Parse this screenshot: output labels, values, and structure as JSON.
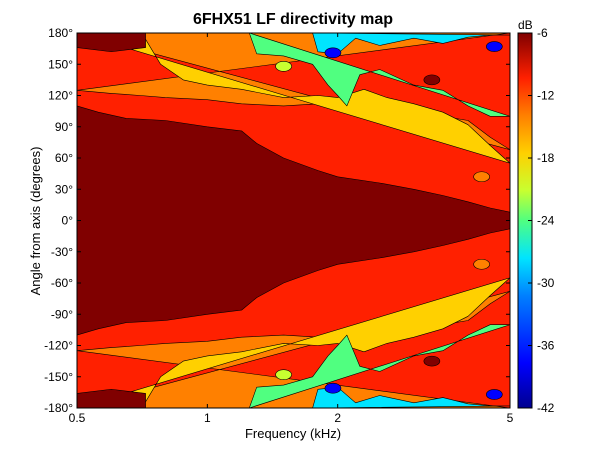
{
  "chart_data": {
    "type": "heatmap",
    "title": "6FHX51 LF directivity map",
    "xlabel": "Frequency (kHz)",
    "ylabel": "Angle from axis (degrees)",
    "xscale": "log",
    "xlim": [
      0.5,
      5
    ],
    "ylim": [
      -180,
      180
    ],
    "x_ticks": [
      {
        "value": 0.5,
        "label": "0.5"
      },
      {
        "value": 1,
        "label": "1"
      },
      {
        "value": 2,
        "label": "2"
      },
      {
        "value": 5,
        "label": "5"
      }
    ],
    "y_ticks": [
      {
        "value": 180,
        "label": "180°"
      },
      {
        "value": 150,
        "label": "150°"
      },
      {
        "value": 120,
        "label": "120°"
      },
      {
        "value": 90,
        "label": "90°"
      },
      {
        "value": 60,
        "label": "60°"
      },
      {
        "value": 30,
        "label": "30°"
      },
      {
        "value": 0,
        "label": "0°"
      },
      {
        "value": -30,
        "label": "-30°"
      },
      {
        "value": -60,
        "label": "-60°"
      },
      {
        "value": -90,
        "label": "-90°"
      },
      {
        "value": -120,
        "label": "-120°"
      },
      {
        "value": -150,
        "label": "-150°"
      },
      {
        "value": -180,
        "label": "-180°"
      }
    ],
    "colorbar": {
      "unit": "dB",
      "range": [
        -42,
        -6
      ],
      "ticks": [
        {
          "value": -6,
          "label": "-6"
        },
        {
          "value": -12,
          "label": "-12"
        },
        {
          "value": -18,
          "label": "-18"
        },
        {
          "value": -24,
          "label": "-24"
        },
        {
          "value": -30,
          "label": "-30"
        },
        {
          "value": -36,
          "label": "-36"
        },
        {
          "value": -42,
          "label": "-42"
        }
      ],
      "colors": [
        "#00008f",
        "#0000ff",
        "#0080ff",
        "#00e4ff",
        "#50ff80",
        "#c8ff30",
        "#ffd000",
        "#ff8000",
        "#ff2000",
        "#800000"
      ]
    },
    "levels": [
      {
        "name": "dark-red",
        "value": -6,
        "color": "#800000"
      },
      {
        "name": "red",
        "value": -9,
        "color": "#ff2000"
      },
      {
        "name": "orange",
        "value": -12,
        "color": "#ff8000"
      },
      {
        "name": "yellow",
        "value": -15,
        "color": "#ffd000"
      },
      {
        "name": "yellow-green",
        "value": -18,
        "color": "#c8ff30"
      },
      {
        "name": "green",
        "value": -21,
        "color": "#50ff80"
      },
      {
        "name": "cyan",
        "value": -24,
        "color": "#00e4ff"
      },
      {
        "name": "light-blue",
        "value": -27,
        "color": "#0080ff"
      },
      {
        "name": "blue",
        "value": -30,
        "color": "#0000ff"
      }
    ],
    "contours_upper": {
      "orange": [
        [
          0.5,
          125
        ],
        [
          0.6,
          122
        ],
        [
          0.7,
          120
        ],
        [
          0.8,
          118
        ],
        [
          1.0,
          116
        ],
        [
          1.2,
          112
        ],
        [
          1.5,
          110
        ],
        [
          1.8,
          112
        ],
        [
          2.0,
          110
        ],
        [
          2.2,
          112
        ],
        [
          2.6,
          108
        ],
        [
          3.0,
          104
        ],
        [
          3.5,
          100
        ],
        [
          4.0,
          96
        ],
        [
          4.5,
          80
        ],
        [
          5,
          68
        ]
      ],
      "yellow": [
        [
          0.5,
          180
        ],
        [
          0.72,
          174
        ],
        [
          0.78,
          150
        ],
        [
          0.88,
          135
        ],
        [
          1.0,
          130
        ],
        [
          1.2,
          126
        ],
        [
          1.5,
          118
        ],
        [
          1.8,
          120
        ],
        [
          2.0,
          118
        ],
        [
          2.3,
          126
        ],
        [
          2.6,
          118
        ],
        [
          3.0,
          112
        ],
        [
          3.5,
          104
        ],
        [
          4.0,
          92
        ],
        [
          4.5,
          72
        ],
        [
          5,
          55
        ]
      ],
      "green": [
        [
          1.25,
          180
        ],
        [
          1.3,
          160
        ],
        [
          1.5,
          158
        ],
        [
          1.75,
          150
        ],
        [
          1.9,
          130
        ],
        [
          2.0,
          120
        ],
        [
          2.1,
          110
        ],
        [
          2.25,
          140
        ],
        [
          2.5,
          145
        ],
        [
          3.0,
          130
        ],
        [
          3.5,
          125
        ],
        [
          4.0,
          110
        ],
        [
          4.5,
          100
        ],
        [
          5,
          100
        ]
      ],
      "cyan": [
        [
          1.75,
          180
        ],
        [
          1.8,
          162
        ],
        [
          2.0,
          160
        ],
        [
          2.2,
          175
        ],
        [
          2.5,
          168
        ],
        [
          3.0,
          175
        ],
        [
          3.5,
          170
        ],
        [
          4.0,
          176
        ],
        [
          4.5,
          178
        ],
        [
          5,
          178
        ]
      ]
    },
    "dark_red_core": [
      [
        0.5,
        110
      ],
      [
        0.56,
        104
      ],
      [
        0.65,
        98
      ],
      [
        0.8,
        96
      ],
      [
        1.0,
        90
      ],
      [
        1.2,
        86
      ],
      [
        1.3,
        74
      ],
      [
        1.5,
        60
      ],
      [
        1.8,
        48
      ],
      [
        2.0,
        42
      ],
      [
        2.5,
        36
      ],
      [
        3.0,
        30
      ],
      [
        3.5,
        24
      ],
      [
        4.0,
        18
      ],
      [
        4.5,
        12
      ],
      [
        5,
        8
      ]
    ],
    "spots_upper": [
      {
        "x": 1.95,
        "y": 161,
        "color": "#0000ff"
      },
      {
        "x": 4.6,
        "y": 167,
        "color": "#0000ff"
      },
      {
        "x": 3.3,
        "y": 135,
        "color": "#800000"
      },
      {
        "x": 4.3,
        "y": 42,
        "color": "#ff8000"
      },
      {
        "x": 1.5,
        "y": 148,
        "color": "#c8ff30"
      }
    ]
  }
}
